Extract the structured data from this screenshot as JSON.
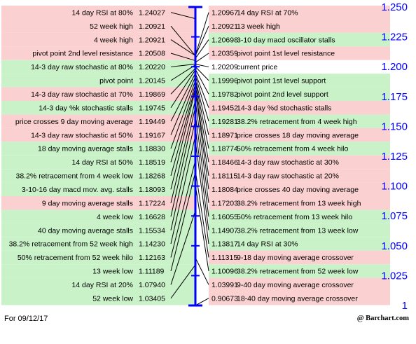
{
  "footer": {
    "date": "For 09/12/17",
    "brand": "@ Barchart.com"
  },
  "colors": {
    "resistance": "#fbd0d0",
    "support": "#c9f2c9",
    "current": "#ffffff",
    "axis": "#0000ff",
    "connector": "#000000"
  },
  "chart_data": {
    "type": "table",
    "axis": {
      "min": 1.0,
      "max": 1.25,
      "ticks": [
        "1.250",
        "1.225",
        "1.200",
        "1.175",
        "1.150",
        "1.125",
        "1.100",
        "1.075",
        "1.050",
        "1.025",
        "1"
      ],
      "tick_values": [
        1.25,
        1.225,
        1.2,
        1.175,
        1.15,
        1.125,
        1.1,
        1.075,
        1.05,
        1.025,
        1.0
      ]
    },
    "left": [
      {
        "label": "14 day RSI at 80%",
        "value": "1.24027",
        "side": "resistance"
      },
      {
        "label": "52 week high",
        "value": "1.20921",
        "side": "resistance"
      },
      {
        "label": "4 week high",
        "value": "1.20921",
        "side": "resistance"
      },
      {
        "label": "pivot point 2nd level resistance",
        "value": "1.20508",
        "side": "resistance"
      },
      {
        "label": "14-3 day raw stochastic at 80%",
        "value": "1.20220",
        "side": "support"
      },
      {
        "label": "pivot point",
        "value": "1.20145",
        "side": "support"
      },
      {
        "label": "14-3 day raw stochastic at 70%",
        "value": "1.19869",
        "side": "resistance"
      },
      {
        "label": "14-3 day %k stochastic stalls",
        "value": "1.19745",
        "side": "support"
      },
      {
        "label": "price crosses 9 day moving average",
        "value": "1.19449",
        "side": "resistance"
      },
      {
        "label": "14-3 day raw stochastic at 50%",
        "value": "1.19167",
        "side": "resistance"
      },
      {
        "label": "18 day moving average stalls",
        "value": "1.18830",
        "side": "support"
      },
      {
        "label": "14 day RSI at 50%",
        "value": "1.18519",
        "side": "support"
      },
      {
        "label": "38.2% retracement from 4 week low",
        "value": "1.18268",
        "side": "support"
      },
      {
        "label": "3-10-16 day macd mov. avg. stalls",
        "value": "1.18093",
        "side": "support"
      },
      {
        "label": "9 day moving average stalls",
        "value": "1.17224",
        "side": "resistance"
      },
      {
        "label": "4 week low",
        "value": "1.16628",
        "side": "support"
      },
      {
        "label": "40 day moving average stalls",
        "value": "1.15534",
        "side": "support"
      },
      {
        "label": "38.2% retracement from 52 week high",
        "value": "1.14230",
        "side": "support"
      },
      {
        "label": "50% retracement from 52 week hilo",
        "value": "1.12163",
        "side": "support"
      },
      {
        "label": "13 week low",
        "value": "1.11189",
        "side": "support"
      },
      {
        "label": "14 day RSI at 20%",
        "value": "1.07940",
        "side": "support"
      },
      {
        "label": "52 week low",
        "value": "1.03405",
        "side": "support"
      }
    ],
    "right": [
      {
        "label": "14 day RSI at 70%",
        "value": "1.20967",
        "side": "resistance"
      },
      {
        "label": "13 week high",
        "value": "1.20921",
        "side": "resistance"
      },
      {
        "label": "3-10 day macd oscillator stalls",
        "value": "1.20698",
        "side": "support"
      },
      {
        "label": "pivot point 1st level resistance",
        "value": "1.20359",
        "side": "resistance"
      },
      {
        "label": "current price",
        "value": "1.20209",
        "side": "current"
      },
      {
        "label": "pivot point 1st level support",
        "value": "1.19996",
        "side": "support"
      },
      {
        "label": "pivot point 2nd level support",
        "value": "1.19782",
        "side": "support"
      },
      {
        "label": "14-3 day %d stochastic stalls",
        "value": "1.19452",
        "side": "resistance"
      },
      {
        "label": "38.2% retracement from 4 week high",
        "value": "1.19281",
        "side": "support"
      },
      {
        "label": "price crosses 18 day moving average",
        "value": "1.18971",
        "side": "resistance"
      },
      {
        "label": "50% retracement from 4 week hilo",
        "value": "1.18774",
        "side": "support"
      },
      {
        "label": "14-3 day raw stochastic at 30%",
        "value": "1.18466",
        "side": "resistance"
      },
      {
        "label": "14-3 day raw stochastic at 20%",
        "value": "1.18115",
        "side": "resistance"
      },
      {
        "label": "price crosses 40 day moving average",
        "value": "1.18084",
        "side": "resistance"
      },
      {
        "label": "38.2% retracement from 13 week high",
        "value": "1.17203",
        "side": "resistance"
      },
      {
        "label": "50% retracement from 13 week hilo",
        "value": "1.16055",
        "side": "support"
      },
      {
        "label": "38.2% retracement from 13 week low",
        "value": "1.14907",
        "side": "support"
      },
      {
        "label": "14 day RSI at 30%",
        "value": "1.13817",
        "side": "support"
      },
      {
        "label": "9-18 day moving average crossover",
        "value": "1.11315",
        "side": "resistance"
      },
      {
        "label": "38.2% retracement from 52 week low",
        "value": "1.10096",
        "side": "support"
      },
      {
        "label": "9-40 day moving average crossover",
        "value": "1.03991",
        "side": "resistance"
      },
      {
        "label": "18-40 day moving average crossover",
        "value": "0.90673",
        "side": "resistance"
      }
    ]
  }
}
